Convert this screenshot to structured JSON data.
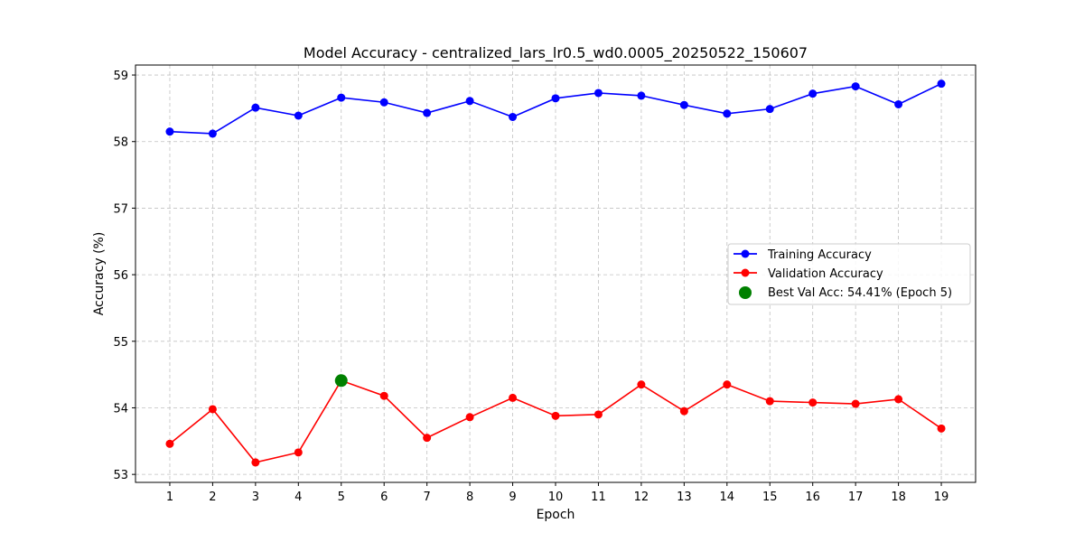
{
  "chart_data": {
    "type": "line",
    "title": "Model Accuracy - centralized_lars_lr0.5_wd0.0005_20250522_150607",
    "xlabel": "Epoch",
    "ylabel": "Accuracy (%)",
    "xlim": [
      0.2,
      19.8
    ],
    "ylim": [
      52.88,
      59.15
    ],
    "xticks": [
      1,
      2,
      3,
      4,
      5,
      6,
      7,
      8,
      9,
      10,
      11,
      12,
      13,
      14,
      15,
      16,
      17,
      18,
      19
    ],
    "yticks": [
      53,
      54,
      55,
      56,
      57,
      58,
      59
    ],
    "grid": true,
    "legend_position": "center-right",
    "x": [
      1,
      2,
      3,
      4,
      5,
      6,
      7,
      8,
      9,
      10,
      11,
      12,
      13,
      14,
      15,
      16,
      17,
      18,
      19
    ],
    "series": [
      {
        "name": "Training Accuracy",
        "color": "#0000ff",
        "values": [
          58.15,
          58.12,
          58.51,
          58.39,
          58.66,
          58.59,
          58.43,
          58.61,
          58.37,
          58.65,
          58.73,
          58.69,
          58.55,
          58.42,
          58.49,
          58.72,
          58.83,
          58.56,
          58.87
        ]
      },
      {
        "name": "Validation Accuracy",
        "color": "#ff0000",
        "values": [
          53.46,
          53.98,
          53.18,
          53.33,
          54.41,
          54.18,
          53.55,
          53.86,
          54.15,
          53.88,
          53.9,
          54.35,
          53.95,
          54.35,
          54.1,
          54.08,
          54.06,
          54.13,
          53.69
        ]
      }
    ],
    "annotation": {
      "name": "Best Val Acc: 54.41% (Epoch 5)",
      "color": "#008000",
      "x": 5,
      "y": 54.41
    }
  }
}
